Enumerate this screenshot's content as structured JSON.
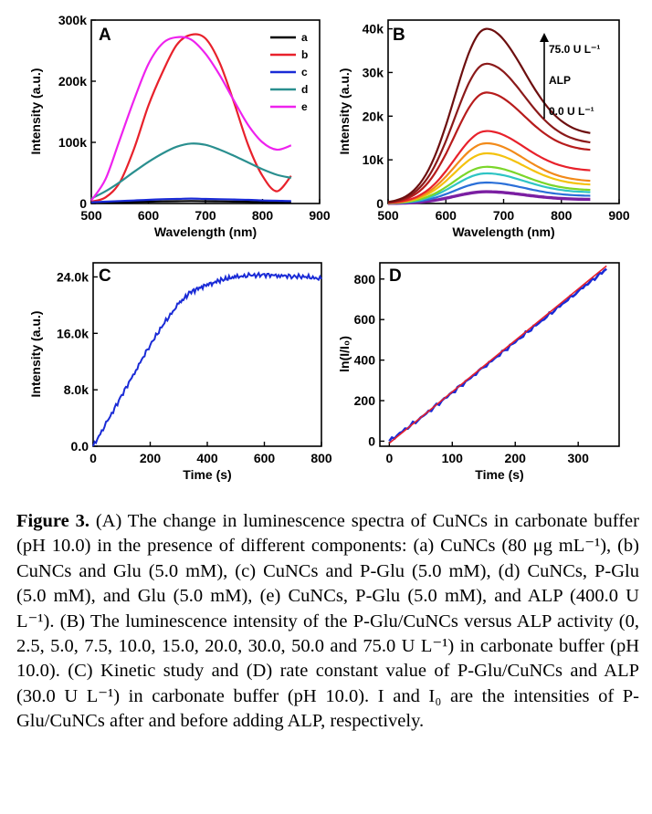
{
  "chart_data": [
    {
      "panel": "A",
      "type": "line",
      "xlabel": "Wavelength (nm)",
      "ylabel": "Intensity (a.u.)",
      "xlim": [
        500,
        900
      ],
      "ylim": [
        0,
        300000
      ],
      "xticks": [
        500,
        600,
        700,
        800,
        900
      ],
      "yticks": [
        0,
        100000,
        200000,
        300000
      ],
      "xtick_labels": [
        "500",
        "600",
        "700",
        "800",
        "900"
      ],
      "ytick_labels": [
        "0",
        "100k",
        "200k",
        "300k"
      ],
      "legend_position": "top-right",
      "x": [
        500,
        525,
        550,
        575,
        600,
        625,
        650,
        675,
        700,
        725,
        750,
        775,
        800,
        825,
        850
      ],
      "series": [
        {
          "name": "a",
          "color": "#000000",
          "values": [
            1000,
            1500,
            2000,
            2500,
            3000,
            3500,
            3800,
            4000,
            3800,
            3500,
            3200,
            2800,
            2500,
            2200,
            2000
          ]
        },
        {
          "name": "b",
          "color": "#e8212b",
          "values": [
            3000,
            10000,
            35000,
            90000,
            160000,
            215000,
            260000,
            276000,
            270000,
            230000,
            165000,
            95000,
            45000,
            20000,
            45000
          ]
        },
        {
          "name": "c",
          "color": "#1a2bd6",
          "values": [
            2000,
            3000,
            4000,
            5000,
            6000,
            7000,
            7500,
            8000,
            7500,
            7000,
            6500,
            6000,
            5000,
            4500,
            4000
          ]
        },
        {
          "name": "d",
          "color": "#2a8f8f",
          "values": [
            8000,
            20000,
            35000,
            52000,
            68000,
            82000,
            93000,
            98000,
            96000,
            88000,
            78000,
            67000,
            56000,
            47000,
            42000
          ]
        },
        {
          "name": "e",
          "color": "#ee22ee",
          "values": [
            5000,
            40000,
            105000,
            170000,
            228000,
            262000,
            272000,
            268000,
            245000,
            210000,
            168000,
            128000,
            100000,
            88000,
            95000
          ]
        }
      ]
    },
    {
      "panel": "B",
      "type": "line",
      "xlabel": "Wavelength (nm)",
      "ylabel": "Intensity (a.u.)",
      "xlim": [
        500,
        900
      ],
      "ylim": [
        0,
        42000
      ],
      "xticks": [
        500,
        600,
        700,
        800,
        900
      ],
      "yticks": [
        0,
        10000,
        20000,
        30000,
        40000
      ],
      "xtick_labels": [
        "500",
        "600",
        "700",
        "800",
        "900"
      ],
      "ytick_labels": [
        "0",
        "10k",
        "20k",
        "30k",
        "40k"
      ],
      "annotations": [
        "75.0 U L⁻¹",
        "ALP",
        "0.0 U L⁻¹"
      ],
      "peak_wavelength": 670,
      "series": [
        {
          "color": "#7b1fa2",
          "peak": 2700,
          "tail": 900
        },
        {
          "color": "#2a6fd8",
          "peak": 4800,
          "tail": 1700
        },
        {
          "color": "#2ec4c4",
          "peak": 6900,
          "tail": 2500
        },
        {
          "color": "#7bd62a",
          "peak": 8400,
          "tail": 3000
        },
        {
          "color": "#f4c20d",
          "peak": 11500,
          "tail": 4200
        },
        {
          "color": "#f28a1a",
          "peak": 13800,
          "tail": 5000
        },
        {
          "color": "#e8212b",
          "peak": 16600,
          "tail": 7400
        },
        {
          "color": "#b71c1c",
          "peak": 25400,
          "tail": 12000
        },
        {
          "color": "#8b1a1a",
          "peak": 32000,
          "tail": 13600
        },
        {
          "color": "#6d0f0f",
          "peak": 40000,
          "tail": 15600
        }
      ]
    },
    {
      "panel": "C",
      "type": "line",
      "xlabel": "Time (s)",
      "ylabel": "Intensity (a.u.)",
      "xlim": [
        0,
        800
      ],
      "ylim": [
        0,
        26000
      ],
      "xticks": [
        0,
        200,
        400,
        600,
        800
      ],
      "yticks": [
        0,
        8000,
        16000,
        24000
      ],
      "xtick_labels": [
        "0",
        "200",
        "400",
        "600",
        "800"
      ],
      "ytick_labels": [
        "0.0",
        "8.0k",
        "16.0k",
        "24.0k"
      ],
      "series": [
        {
          "color": "#1a2bd6",
          "x": [
            0,
            50,
            100,
            150,
            200,
            250,
            300,
            340,
            380,
            420,
            460,
            500,
            550,
            600,
            650,
            700,
            750,
            800
          ],
          "values": [
            0,
            3500,
            7200,
            10800,
            14400,
            17500,
            20200,
            21800,
            22600,
            23200,
            23700,
            24000,
            24200,
            24300,
            24200,
            24100,
            24000,
            23700
          ]
        }
      ]
    },
    {
      "panel": "D",
      "type": "line",
      "xlabel": "Time (s)",
      "ylabel": "ln(I/I₀)",
      "xlim": [
        -15,
        365
      ],
      "ylim": [
        -25,
        880
      ],
      "xticks": [
        0,
        100,
        200,
        300
      ],
      "yticks": [
        0,
        200,
        400,
        600,
        800
      ],
      "xtick_labels": [
        "0",
        "100",
        "200",
        "300"
      ],
      "ytick_labels": [
        "0",
        "200",
        "400",
        "600",
        "800"
      ],
      "series": [
        {
          "color": "#1a2bd6",
          "x": [
            0,
            50,
            100,
            150,
            200,
            250,
            300,
            345
          ],
          "values": [
            0,
            115,
            240,
            365,
            490,
            615,
            740,
            850
          ]
        },
        {
          "color": "#e8212b",
          "x": [
            0,
            345
          ],
          "values": [
            -10,
            865
          ]
        }
      ]
    }
  ],
  "caption": {
    "title": "Figure 3.",
    "text": " (A) The change in luminescence spectra of CuNCs in carbonate buffer (pH 10.0) in the presence of different components: (a) CuNCs (80 μg mL⁻¹), (b) CuNCs and Glu (5.0 mM), (c) CuNCs and P-Glu (5.0 mM), (d) CuNCs, P-Glu (5.0 mM), and Glu (5.0 mM), (e) CuNCs, P-Glu (5.0 mM), and ALP (400.0 U L⁻¹). (B) The luminescence intensity of the P-Glu/CuNCs versus ALP activity (0, 2.5, 5.0, 7.5, 10.0, 15.0, 20.0, 30.0, 50.0 and 75.0 U L⁻¹) in carbonate buffer (pH 10.0). (C) Kinetic study and (D) rate constant value of P-Glu/CuNCs and ALP (30.0 U L⁻¹) in carbonate buffer (pH 10.0). I and I₀ are the intensities of P-Glu/CuNCs after and before adding ALP, respectively."
  }
}
